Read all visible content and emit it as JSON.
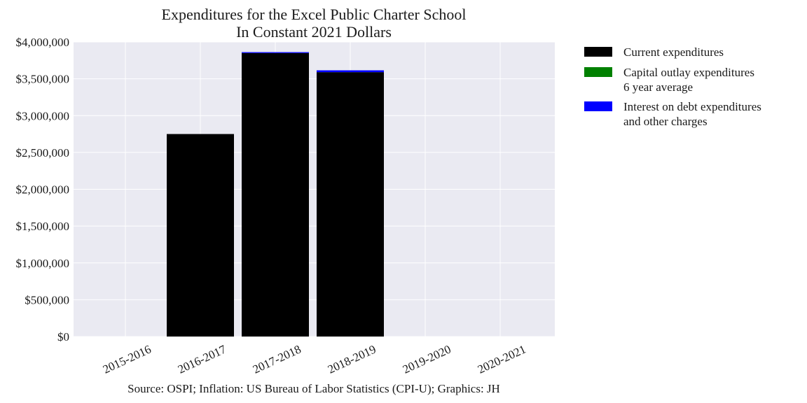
{
  "chart_data": {
    "type": "bar",
    "stacked": true,
    "title": [
      "Expenditures for the Excel Public Charter School",
      "In Constant 2021 Dollars"
    ],
    "xlabel": "",
    "ylabel": "",
    "categories": [
      "2015-2016",
      "2016-2017",
      "2017-2018",
      "2018-2019",
      "2019-2020",
      "2020-2021"
    ],
    "ylim": [
      0,
      4000000
    ],
    "yticks": [
      0,
      500000,
      1000000,
      1500000,
      2000000,
      2500000,
      3000000,
      3500000,
      4000000
    ],
    "ytick_labels": [
      "$0",
      "$500,000",
      "$1,000,000",
      "$1,500,000",
      "$2,000,000",
      "$2,500,000",
      "$3,000,000",
      "$3,500,000",
      "$4,000,000"
    ],
    "series": [
      {
        "name": "Current expenditures",
        "color": "#000000",
        "values": [
          0,
          2750000,
          3850000,
          3590000,
          0,
          0
        ]
      },
      {
        "name": "Capital outlay expenditures\n6 year average",
        "color": "#008000",
        "values": [
          0,
          0,
          0,
          0,
          0,
          0
        ]
      },
      {
        "name": "Interest on debt expenditures\nand other charges",
        "color": "#0000ff",
        "values": [
          0,
          0,
          12000,
          25000,
          0,
          0
        ]
      }
    ],
    "grid": true,
    "background": "#eaeaf2",
    "legend_position": "outside-right",
    "source": "Source: OSPI; Inflation: US Bureau of Labor Statistics (CPI-U); Graphics: JH"
  }
}
